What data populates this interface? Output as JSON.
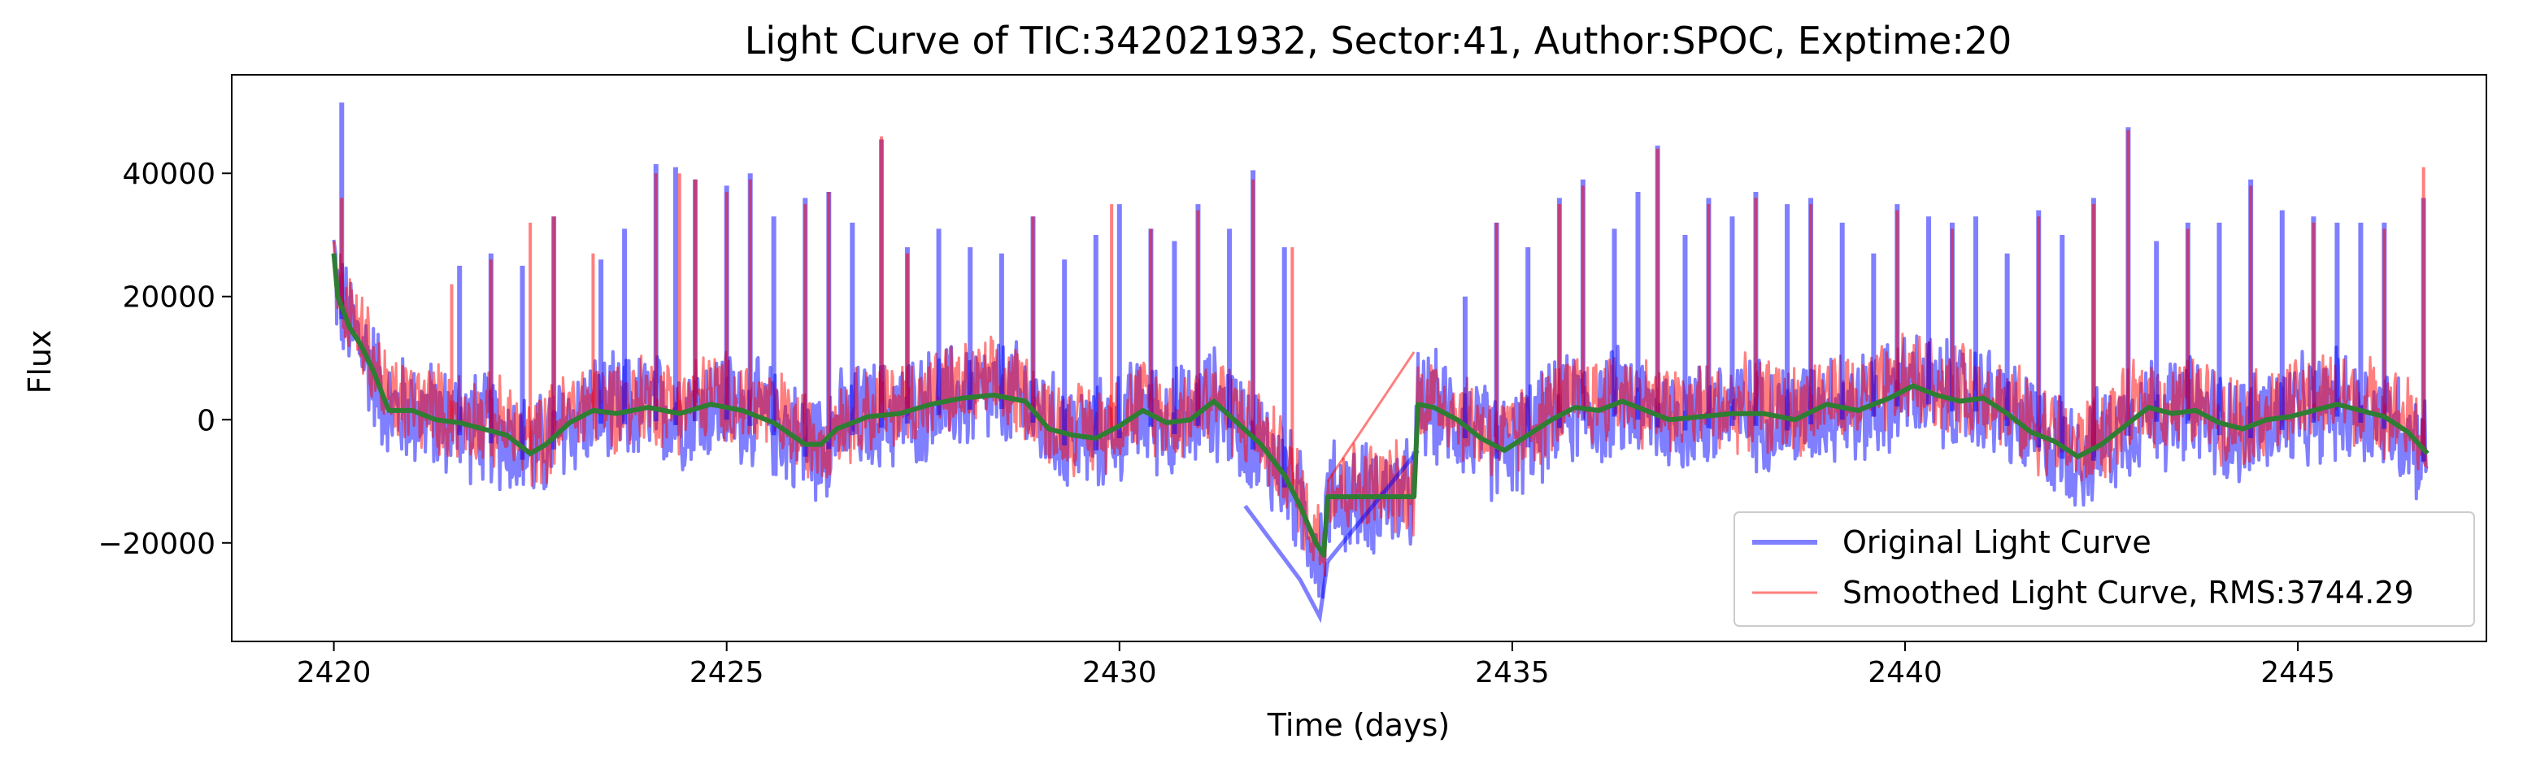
{
  "chart_data": {
    "type": "line",
    "title": "Light Curve of TIC:342021932, Sector:41, Author:SPOC, Exptime:20",
    "xlabel": "Time (days)",
    "ylabel": "Flux",
    "xlim": [
      2418.7,
      2447.4
    ],
    "ylim": [
      -36000,
      56000
    ],
    "xticks": [
      2420,
      2425,
      2430,
      2435,
      2440,
      2445
    ],
    "xtick_labels": [
      "2420",
      "2425",
      "2430",
      "2435",
      "2440",
      "2445"
    ],
    "yticks": [
      -20000,
      0,
      20000,
      40000
    ],
    "ytick_labels": [
      "−20000",
      "0",
      "20000",
      "40000"
    ],
    "grid": false,
    "legend_position": "lower-right",
    "data_gap": [
      32.6,
      33.8
    ],
    "series": [
      {
        "name": "Original Light Curve",
        "color": "#0000ff",
        "alpha": 0.5,
        "style": "dense-noise",
        "noise_band": [
          -9000,
          9000
        ],
        "spikes": [
          [
            2420.1,
            51500
          ],
          [
            2421.6,
            25000
          ],
          [
            2422.0,
            27000
          ],
          [
            2422.4,
            25000
          ],
          [
            2422.8,
            33000
          ],
          [
            2423.4,
            26000
          ],
          [
            2423.7,
            31000
          ],
          [
            2424.1,
            41500
          ],
          [
            2424.35,
            41000
          ],
          [
            2424.6,
            39000
          ],
          [
            2425.0,
            38000
          ],
          [
            2425.3,
            40000
          ],
          [
            2425.6,
            33000
          ],
          [
            2426.0,
            36000
          ],
          [
            2426.3,
            37000
          ],
          [
            2426.6,
            32000
          ],
          [
            2426.97,
            45500
          ],
          [
            2427.3,
            28000
          ],
          [
            2427.7,
            31000
          ],
          [
            2428.1,
            28000
          ],
          [
            2428.5,
            27000
          ],
          [
            2428.9,
            33000
          ],
          [
            2429.3,
            26000
          ],
          [
            2429.7,
            30000
          ],
          [
            2430.0,
            35000
          ],
          [
            2430.4,
            31000
          ],
          [
            2430.7,
            29000
          ],
          [
            2431.0,
            35000
          ],
          [
            2431.4,
            31000
          ],
          [
            2431.7,
            40500
          ],
          [
            2432.1,
            28000
          ],
          [
            2434.4,
            20000
          ],
          [
            2434.8,
            32000
          ],
          [
            2435.2,
            28000
          ],
          [
            2435.6,
            36000
          ],
          [
            2435.9,
            39000
          ],
          [
            2436.3,
            31000
          ],
          [
            2436.6,
            37000
          ],
          [
            2436.85,
            44500
          ],
          [
            2437.2,
            30000
          ],
          [
            2437.5,
            36000
          ],
          [
            2437.8,
            33000
          ],
          [
            2438.1,
            37000
          ],
          [
            2438.5,
            35000
          ],
          [
            2438.8,
            36000
          ],
          [
            2439.2,
            32000
          ],
          [
            2439.6,
            27000
          ],
          [
            2439.9,
            35000
          ],
          [
            2440.3,
            33000
          ],
          [
            2440.6,
            32000
          ],
          [
            2440.9,
            33000
          ],
          [
            2441.3,
            27000
          ],
          [
            2441.7,
            34000
          ],
          [
            2442.0,
            30000
          ],
          [
            2442.4,
            36000
          ],
          [
            2442.84,
            47500
          ],
          [
            2443.2,
            29000
          ],
          [
            2443.6,
            32000
          ],
          [
            2444.0,
            32000
          ],
          [
            2444.4,
            39000
          ],
          [
            2444.8,
            34000
          ],
          [
            2445.2,
            33000
          ],
          [
            2445.5,
            32000
          ],
          [
            2445.8,
            32000
          ],
          [
            2446.1,
            32000
          ],
          [
            2446.6,
            36000
          ]
        ]
      },
      {
        "name": "Smoothed Light Curve, RMS:3744.29",
        "color": "#ff0000",
        "alpha": 0.5,
        "style": "dense-noise",
        "noise_band": [
          -7000,
          10000
        ],
        "spikes": [
          [
            2420.1,
            36000
          ],
          [
            2421.5,
            22000
          ],
          [
            2422.0,
            26000
          ],
          [
            2422.5,
            32000
          ],
          [
            2422.8,
            33000
          ],
          [
            2423.3,
            27000
          ],
          [
            2424.1,
            40000
          ],
          [
            2424.4,
            40000
          ],
          [
            2424.6,
            39000
          ],
          [
            2425.0,
            37000
          ],
          [
            2425.3,
            39000
          ],
          [
            2426.0,
            35000
          ],
          [
            2426.3,
            37000
          ],
          [
            2426.97,
            46000
          ],
          [
            2427.3,
            27000
          ],
          [
            2428.9,
            33000
          ],
          [
            2429.9,
            35000
          ],
          [
            2430.4,
            31000
          ],
          [
            2431.0,
            34000
          ],
          [
            2431.7,
            39000
          ],
          [
            2432.2,
            28000
          ],
          [
            2434.8,
            32000
          ],
          [
            2435.6,
            35000
          ],
          [
            2435.9,
            38000
          ],
          [
            2436.85,
            44000
          ],
          [
            2437.5,
            35000
          ],
          [
            2438.1,
            36000
          ],
          [
            2438.8,
            35000
          ],
          [
            2439.9,
            34000
          ],
          [
            2440.6,
            31000
          ],
          [
            2441.7,
            33000
          ],
          [
            2442.4,
            35000
          ],
          [
            2442.84,
            47000
          ],
          [
            2443.6,
            31000
          ],
          [
            2444.4,
            38000
          ],
          [
            2445.2,
            32000
          ],
          [
            2446.1,
            31000
          ],
          [
            2446.6,
            41000
          ]
        ]
      },
      {
        "name": "",
        "color": "#2e7d32",
        "alpha": 1,
        "style": "line",
        "x": [
          2420.0,
          2420.05,
          2420.2,
          2420.35,
          2420.5,
          2420.7,
          2421.0,
          2421.3,
          2421.6,
          2421.9,
          2422.2,
          2422.5,
          2422.7,
          2423.0,
          2423.3,
          2423.6,
          2424.0,
          2424.4,
          2424.8,
          2425.2,
          2425.6,
          2426.0,
          2426.2,
          2426.4,
          2426.8,
          2427.2,
          2427.6,
          2428.0,
          2428.4,
          2428.8,
          2429.1,
          2429.4,
          2429.7,
          2430.0,
          2430.3,
          2430.6,
          2430.9,
          2431.2,
          2431.5,
          2431.8,
          2432.1,
          2432.3,
          2432.5,
          2432.6,
          2432.65,
          2433.75,
          2433.8,
          2434.0,
          2434.3,
          2434.6,
          2434.9,
          2435.2,
          2435.5,
          2435.8,
          2436.1,
          2436.4,
          2436.7,
          2437.0,
          2437.4,
          2437.8,
          2438.2,
          2438.6,
          2439.0,
          2439.4,
          2439.8,
          2440.1,
          2440.4,
          2440.7,
          2441.0,
          2441.3,
          2441.6,
          2441.9,
          2442.2,
          2442.5,
          2442.8,
          2443.1,
          2443.4,
          2443.7,
          2444.0,
          2444.3,
          2444.6,
          2444.9,
          2445.2,
          2445.5,
          2445.8,
          2446.1,
          2446.4,
          2446.65
        ],
        "y": [
          27000,
          20000,
          15000,
          12000,
          8000,
          1500,
          1500,
          0,
          -500,
          -1500,
          -2500,
          -5500,
          -4000,
          -500,
          1500,
          1000,
          2000,
          1000,
          2500,
          1500,
          -500,
          -4000,
          -4000,
          -1500,
          500,
          1000,
          2500,
          3500,
          4000,
          3000,
          -1500,
          -2500,
          -3000,
          -1000,
          1500,
          -500,
          0,
          3000,
          -500,
          -4000,
          -9000,
          -14000,
          -20000,
          -22000,
          -12500,
          -12500,
          2500,
          2000,
          0,
          -3000,
          -5000,
          -2500,
          0,
          2000,
          1500,
          3000,
          1500,
          0,
          500,
          1000,
          1000,
          0,
          2500,
          1500,
          3500,
          5500,
          4000,
          3000,
          3500,
          1000,
          -2000,
          -3500,
          -6000,
          -4000,
          -1000,
          2000,
          1000,
          1500,
          -500,
          -1500,
          0,
          500,
          1500,
          2500,
          1500,
          500,
          -2000,
          -5500
        ]
      }
    ]
  }
}
